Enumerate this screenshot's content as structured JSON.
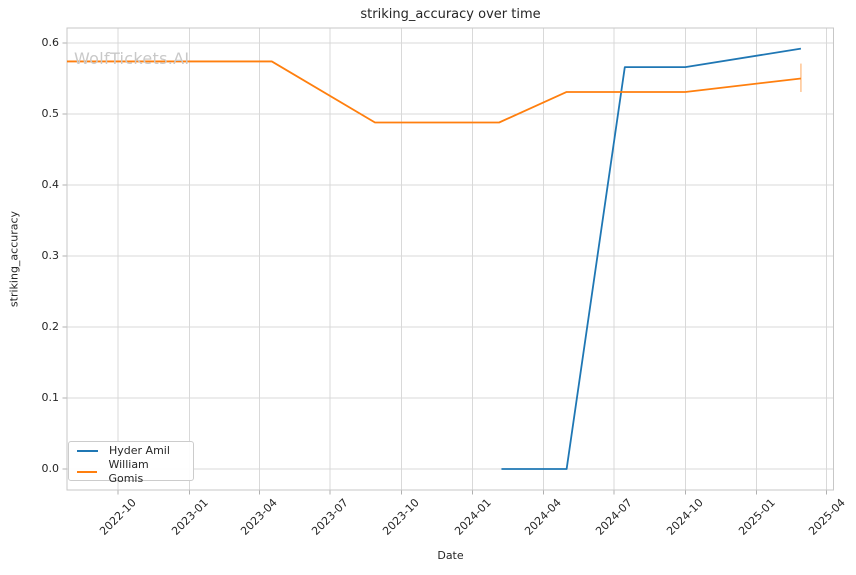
{
  "figure": {
    "background": "#ffffff"
  },
  "watermark": {
    "text": "WolfTickets.AI",
    "color": "#c9c9c9"
  },
  "chart_data": {
    "type": "line",
    "title": "striking_accuracy over time",
    "xlabel": "Date",
    "ylabel": "striking_accuracy",
    "grid": true,
    "legend_position": "lower left",
    "x_ticks": [
      "2022-10",
      "2023-01",
      "2023-04",
      "2023-07",
      "2023-10",
      "2024-01",
      "2024-04",
      "2024-07",
      "2024-10",
      "2025-01",
      "2025-04"
    ],
    "y_ticks": [
      0.0,
      0.1,
      0.2,
      0.3,
      0.4,
      0.5,
      0.6
    ],
    "y_tick_labels": [
      "0.0",
      "0.1",
      "0.2",
      "0.3",
      "0.4",
      "0.5",
      "0.6"
    ],
    "xlim": [
      "2022-07-27",
      "2025-04-10"
    ],
    "ylim": [
      -0.0296,
      0.6211
    ],
    "series": [
      {
        "name": "Hyder Amil",
        "color": "#1f77b4",
        "points": [
          {
            "date": "2024-02-07",
            "value": 0.0
          },
          {
            "date": "2024-05-01",
            "value": 0.0
          },
          {
            "date": "2024-07-15",
            "value": 0.566
          },
          {
            "date": "2024-10-01",
            "value": 0.566
          },
          {
            "date": "2025-02-27",
            "value": 0.592
          }
        ]
      },
      {
        "name": "William Gomis",
        "color": "#ff7f0e",
        "points": [
          {
            "date": "2022-07-27",
            "value": 0.574
          },
          {
            "date": "2023-04-17",
            "value": 0.574
          },
          {
            "date": "2023-08-28",
            "value": 0.488
          },
          {
            "date": "2024-02-04",
            "value": 0.488
          },
          {
            "date": "2024-05-01",
            "value": 0.531
          },
          {
            "date": "2024-10-01",
            "value": 0.531
          },
          {
            "date": "2025-02-27",
            "value": 0.55
          }
        ],
        "error_bars": [
          {
            "date": "2025-02-27",
            "low": 0.531,
            "high": 0.571
          }
        ]
      }
    ],
    "style": {
      "grid_color": "#d9d9d9",
      "spine_color": "#c7c7c7",
      "tick_mark_color": "#b0b0b0",
      "text_color": "#262626"
    }
  }
}
